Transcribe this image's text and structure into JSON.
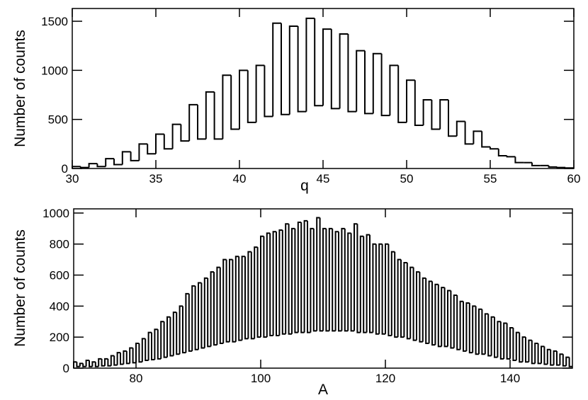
{
  "chart_data": [
    {
      "type": "histogram",
      "xlabel": "q",
      "ylabel": "Number of counts",
      "color": "#000000",
      "xlim": [
        30,
        60
      ],
      "ylim": [
        0,
        1630
      ],
      "xticks": [
        30,
        35,
        40,
        45,
        50,
        55,
        60
      ],
      "yticks": [
        0,
        500,
        1000,
        1500
      ],
      "bins": [
        30,
        30.5,
        31,
        31.5,
        32,
        32.5,
        33,
        33.5,
        34,
        34.5,
        35,
        35.5,
        36,
        36.5,
        37,
        37.5,
        38,
        38.5,
        39,
        39.5,
        40,
        40.5,
        41,
        41.5,
        42,
        42.5,
        43,
        43.5,
        44,
        44.5,
        45,
        45.5,
        46,
        46.5,
        47,
        47.5,
        48,
        48.5,
        49,
        49.5,
        50,
        50.5,
        51,
        51.5,
        52,
        52.5,
        53,
        53.5,
        54,
        54.5,
        55,
        55.5,
        56,
        56.5,
        57,
        57.5,
        58,
        58.5,
        59,
        59.5,
        60
      ],
      "values": [
        20,
        10,
        50,
        20,
        100,
        40,
        170,
        80,
        250,
        150,
        350,
        200,
        450,
        280,
        650,
        300,
        780,
        300,
        950,
        400,
        1000,
        470,
        1050,
        530,
        1480,
        550,
        1450,
        580,
        1530,
        640,
        1420,
        610,
        1370,
        580,
        1200,
        560,
        1170,
        540,
        1050,
        470,
        900,
        440,
        700,
        400,
        700,
        330,
        480,
        250,
        380,
        220,
        200,
        130,
        120,
        60,
        60,
        30,
        30,
        15,
        10,
        5
      ]
    },
    {
      "type": "histogram",
      "xlabel": "A",
      "ylabel": "Number of counts",
      "color": "#000000",
      "xlim": [
        70,
        150
      ],
      "ylim": [
        0,
        1027
      ],
      "xticks": [
        80,
        100,
        120,
        140
      ],
      "yticks": [
        0,
        200,
        400,
        600,
        800,
        1000
      ],
      "bins": [
        70,
        70.5,
        71,
        71.5,
        72,
        72.5,
        73,
        73.5,
        74,
        74.5,
        75,
        75.5,
        76,
        76.5,
        77,
        77.5,
        78,
        78.5,
        79,
        79.5,
        80,
        80.5,
        81,
        81.5,
        82,
        82.5,
        83,
        83.5,
        84,
        84.5,
        85,
        85.5,
        86,
        86.5,
        87,
        87.5,
        88,
        88.5,
        89,
        89.5,
        90,
        90.5,
        91,
        91.5,
        92,
        92.5,
        93,
        93.5,
        94,
        94.5,
        95,
        95.5,
        96,
        96.5,
        97,
        97.5,
        98,
        98.5,
        99,
        99.5,
        100,
        100.5,
        101,
        101.5,
        102,
        102.5,
        103,
        103.5,
        104,
        104.5,
        105,
        105.5,
        106,
        106.5,
        107,
        107.5,
        108,
        108.5,
        109,
        109.5,
        110,
        110.5,
        111,
        111.5,
        112,
        112.5,
        113,
        113.5,
        114,
        114.5,
        115,
        115.5,
        116,
        116.5,
        117,
        117.5,
        118,
        118.5,
        119,
        119.5,
        120,
        120.5,
        121,
        121.5,
        122,
        122.5,
        123,
        123.5,
        124,
        124.5,
        125,
        125.5,
        126,
        126.5,
        127,
        127.5,
        128,
        128.5,
        129,
        129.5,
        130,
        130.5,
        131,
        131.5,
        132,
        132.5,
        133,
        133.5,
        134,
        134.5,
        135,
        135.5,
        136,
        136.5,
        137,
        137.5,
        138,
        138.5,
        139,
        139.5,
        140,
        140.5,
        141,
        141.5,
        142,
        142.5,
        143,
        143.5,
        144,
        144.5,
        145,
        145.5,
        146,
        146.5,
        147,
        147.5,
        148,
        148.5,
        149,
        149.5,
        150
      ],
      "values": [
        40,
        10,
        30,
        10,
        50,
        10,
        40,
        10,
        60,
        15,
        60,
        15,
        80,
        20,
        100,
        25,
        110,
        30,
        130,
        35,
        160,
        40,
        190,
        50,
        230,
        55,
        250,
        60,
        300,
        70,
        330,
        80,
        360,
        90,
        400,
        100,
        480,
        110,
        530,
        120,
        550,
        130,
        580,
        140,
        620,
        150,
        650,
        160,
        700,
        170,
        700,
        170,
        720,
        180,
        720,
        190,
        750,
        190,
        780,
        200,
        850,
        200,
        870,
        210,
        880,
        210,
        890,
        220,
        930,
        220,
        900,
        230,
        940,
        230,
        950,
        230,
        900,
        240,
        970,
        240,
        900,
        240,
        900,
        240,
        880,
        240,
        900,
        240,
        870,
        240,
        930,
        230,
        850,
        230,
        860,
        230,
        800,
        220,
        800,
        220,
        800,
        210,
        750,
        200,
        700,
        200,
        680,
        190,
        650,
        180,
        620,
        170,
        580,
        160,
        560,
        150,
        540,
        140,
        520,
        140,
        500,
        130,
        470,
        120,
        430,
        110,
        420,
        100,
        400,
        90,
        380,
        90,
        350,
        80,
        330,
        70,
        300,
        60,
        290,
        60,
        260,
        50,
        230,
        40,
        200,
        40,
        180,
        30,
        160,
        30,
        140,
        25,
        120,
        20,
        110,
        20,
        90,
        15,
        70,
        10
      ]
    }
  ]
}
